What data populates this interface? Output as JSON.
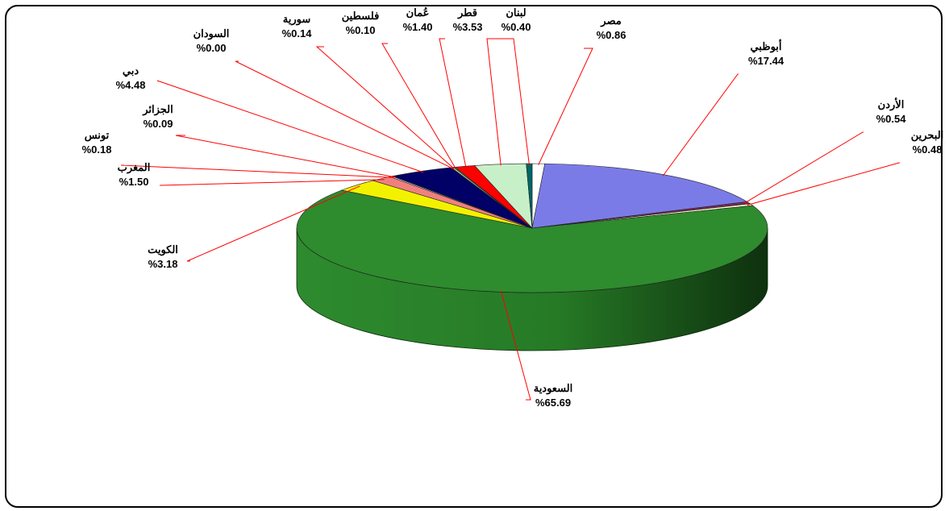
{
  "chart_data": {
    "type": "pie",
    "title": "",
    "categories": [
      "مصر",
      "أبوظبي",
      "الأردن",
      "البحرين",
      "السعودية",
      "الكويت",
      "المغرب",
      "تونس",
      "الجزائر",
      "دبي",
      "السودان",
      "سورية",
      "فلسطين",
      "عُمان",
      "قطر",
      "لبنان"
    ],
    "values": [
      0.86,
      17.44,
      0.54,
      0.48,
      65.69,
      3.18,
      1.5,
      0.18,
      0.09,
      4.48,
      0.0,
      0.14,
      0.1,
      1.4,
      3.53,
      0.4
    ],
    "value_labels": [
      "%0.86",
      "%17.44",
      "%0.54",
      "%0.48",
      "%65.69",
      "%3.18",
      "%1.50",
      "%0.18",
      "%0.09",
      "%4.48",
      "%0.00",
      "%0.14",
      "%0.10",
      "%1.40",
      "%3.53",
      "%0.40"
    ],
    "colors": [
      "#ffffff",
      "#7b7be8",
      "#7a2a5a",
      "#ffffcc",
      "#2e8b2e",
      "#f2f200",
      "#f08080",
      "#e8e8ff",
      "#ccffff",
      "#000066",
      "#ff00ff",
      "#ffff99",
      "#00cccc",
      "#ff0000",
      "#c8f0c8",
      "#006666"
    ],
    "legend": "none",
    "label_style": "callout-lines",
    "leader_color": "#ff0000",
    "three_d": true
  }
}
